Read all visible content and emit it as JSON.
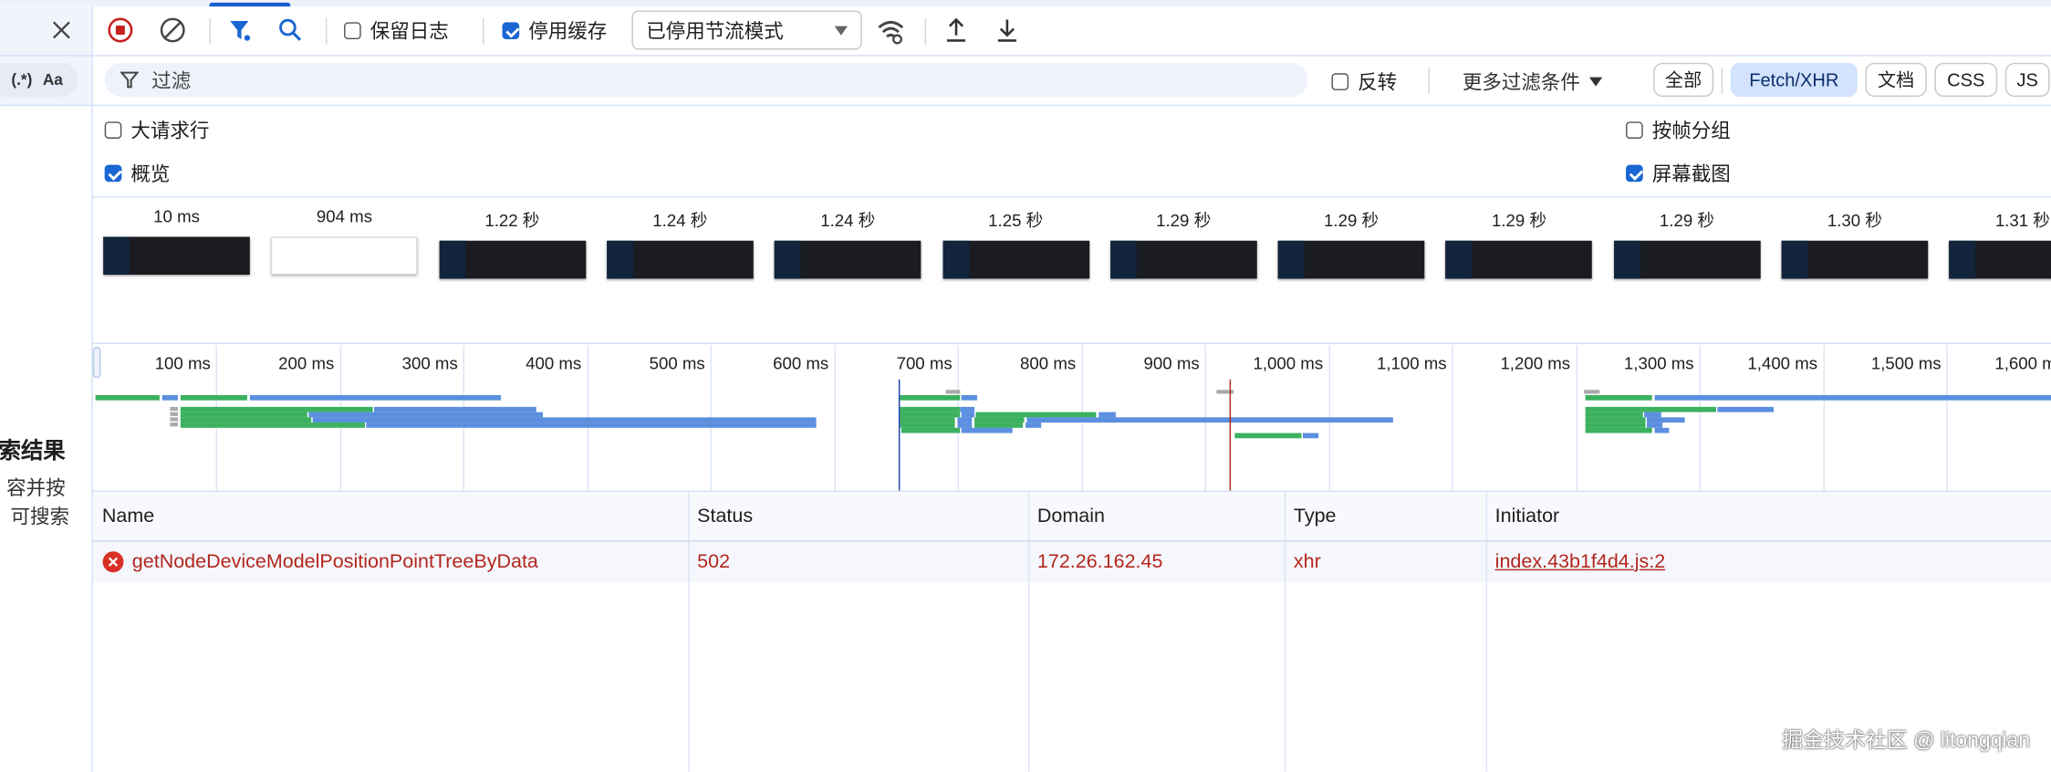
{
  "left_panel": {
    "close_icon": "close-icon",
    "regex_toggle": "(.*)",
    "case_toggle": "Aa",
    "search_results_title": "索结果",
    "hint_line1": "容并按",
    "hint_line2": "可搜索"
  },
  "toolbar": {
    "record_icon": "stop-recording-icon",
    "clear_icon": "clear-icon",
    "filter_icon": "filter-icon",
    "search_icon": "search-icon",
    "preserve_log": {
      "label": "保留日志",
      "checked": false
    },
    "disable_cache": {
      "label": "停用缓存",
      "checked": true
    },
    "throttling": {
      "selected": "已停用节流模式"
    },
    "network_conditions_icon": "wifi-gear-icon",
    "import_icon": "upload-icon",
    "export_icon": "download-icon"
  },
  "filter_bar": {
    "placeholder": "过滤",
    "invert": {
      "label": "反转",
      "checked": false
    },
    "more_filters": "更多过滤条件",
    "types": [
      {
        "label": "全部",
        "selected": false
      },
      {
        "label": "Fetch/XHR",
        "selected": true
      },
      {
        "label": "文档",
        "selected": false
      },
      {
        "label": "CSS",
        "selected": false
      },
      {
        "label": "JS",
        "selected": false
      }
    ]
  },
  "options": {
    "big_request_rows": {
      "label": "大请求行",
      "checked": false
    },
    "overview": {
      "label": "概览",
      "checked": true
    },
    "group_by_frame": {
      "label": "按帧分组",
      "checked": false
    },
    "screenshots": {
      "label": "屏幕截图",
      "checked": true
    }
  },
  "filmstrip": [
    {
      "time": "10 ms",
      "blank": false
    },
    {
      "time": "904 ms",
      "blank": true
    },
    {
      "time": "1.22 秒",
      "blank": false
    },
    {
      "time": "1.24 秒",
      "blank": false
    },
    {
      "time": "1.24 秒",
      "blank": false
    },
    {
      "time": "1.25 秒",
      "blank": false
    },
    {
      "time": "1.29 秒",
      "blank": false
    },
    {
      "time": "1.29 秒",
      "blank": false
    },
    {
      "time": "1.29 秒",
      "blank": false
    },
    {
      "time": "1.29 秒",
      "blank": false
    },
    {
      "time": "1.30 秒",
      "blank": false
    },
    {
      "time": "1.31 秒",
      "blank": false
    }
  ],
  "overview_timeline": {
    "ticks": [
      "100 ms",
      "200 ms",
      "300 ms",
      "400 ms",
      "500 ms",
      "600 ms",
      "700 ms",
      "800 ms",
      "900 ms",
      "1,000 ms",
      "1,100 ms",
      "1,200 ms",
      "1,300 ms",
      "1,400 ms",
      "1,500 ms",
      "1,600 ms"
    ],
    "dom_content_loaded_ms": 652,
    "load_ms": 920,
    "colors": {
      "waiting": "#3cb15f",
      "download": "#5b8fdf",
      "queued": "#aaaaaa",
      "dcl": "#1a3fb0",
      "load": "#b3261e"
    },
    "bars": [
      {
        "lane": 1,
        "segments": [
          [
            3,
            54,
            "waiting"
          ],
          [
            57,
            69,
            "download"
          ],
          [
            71,
            125,
            "waiting"
          ],
          [
            128,
            331,
            "download"
          ]
        ]
      },
      {
        "lane": 2,
        "segments": [
          [
            63,
            69,
            "queued"
          ],
          [
            71,
            227,
            "waiting"
          ],
          [
            228,
            359,
            "download"
          ]
        ]
      },
      {
        "lane": 3,
        "segments": [
          [
            63,
            69,
            "queued"
          ],
          [
            71,
            174,
            "waiting"
          ],
          [
            175,
            365,
            "download"
          ]
        ]
      },
      {
        "lane": 4,
        "segments": [
          [
            63,
            69,
            "queued"
          ],
          [
            71,
            177,
            "waiting"
          ],
          [
            178,
            586,
            "download"
          ]
        ]
      },
      {
        "lane": 5,
        "segments": [
          [
            63,
            69,
            "queued"
          ],
          [
            71,
            221,
            "waiting"
          ],
          [
            222,
            586,
            "download"
          ]
        ]
      },
      {
        "lane": 0,
        "segments": [
          [
            690,
            702,
            "queued"
          ]
        ]
      },
      {
        "lane": 1,
        "segments": [
          [
            653,
            702,
            "waiting"
          ],
          [
            703,
            716,
            "download"
          ]
        ]
      },
      {
        "lane": 2,
        "segments": [
          [
            653,
            702,
            "waiting"
          ],
          [
            702,
            714,
            "download"
          ]
        ]
      },
      {
        "lane": 3,
        "segments": [
          [
            653,
            702,
            "waiting"
          ],
          [
            703,
            714,
            "download"
          ],
          [
            715,
            812,
            "waiting"
          ],
          [
            814,
            828,
            "download"
          ]
        ]
      },
      {
        "lane": 4,
        "segments": [
          [
            653,
            698,
            "waiting"
          ],
          [
            700,
            712,
            "download"
          ],
          [
            714,
            754,
            "waiting"
          ],
          [
            756,
            1052,
            "download"
          ]
        ]
      },
      {
        "lane": 5,
        "segments": [
          [
            653,
            698,
            "waiting"
          ],
          [
            700,
            712,
            "download"
          ],
          [
            714,
            753,
            "waiting"
          ],
          [
            755,
            768,
            "download"
          ]
        ]
      },
      {
        "lane": 6,
        "segments": [
          [
            654,
            702,
            "waiting"
          ],
          [
            703,
            744,
            "download"
          ]
        ]
      },
      {
        "lane": 0,
        "segments": [
          [
            910,
            923,
            "queued"
          ]
        ]
      },
      {
        "lane": 7,
        "segments": [
          [
            924,
            978,
            "waiting"
          ],
          [
            979,
            992,
            "download"
          ]
        ]
      },
      {
        "lane": 0,
        "segments": [
          [
            1207,
            1220,
            "queued"
          ]
        ]
      },
      {
        "lane": 1,
        "segments": [
          [
            1208,
            1262,
            "waiting"
          ],
          [
            1264,
            1700,
            "download"
          ]
        ]
      },
      {
        "lane": 2,
        "segments": [
          [
            1208,
            1314,
            "waiting"
          ],
          [
            1315,
            1360,
            "download"
          ]
        ]
      },
      {
        "lane": 3,
        "segments": [
          [
            1208,
            1255,
            "waiting"
          ],
          [
            1256,
            1269,
            "download"
          ]
        ]
      },
      {
        "lane": 4,
        "segments": [
          [
            1208,
            1257,
            "waiting"
          ],
          [
            1258,
            1288,
            "download"
          ]
        ]
      },
      {
        "lane": 5,
        "segments": [
          [
            1208,
            1257,
            "waiting"
          ],
          [
            1258,
            1270,
            "download"
          ]
        ]
      },
      {
        "lane": 6,
        "segments": [
          [
            1208,
            1262,
            "waiting"
          ],
          [
            1264,
            1276,
            "download"
          ]
        ]
      }
    ]
  },
  "table": {
    "columns": [
      "Name",
      "Status",
      "Domain",
      "Type",
      "Initiator"
    ],
    "rows": [
      {
        "error": true,
        "error_icon": "error-icon",
        "name": "getNodeDeviceModelPositionPointTreeByData",
        "status": "502",
        "domain": "172.26.162.45",
        "type": "xhr",
        "initiator": "index.43b1f4d4.js:2"
      }
    ]
  },
  "watermark": "掘金技术社区 @ litongqian",
  "colors": {
    "accent": "#1a66d2",
    "error": "#b3261e",
    "selected_chip": "#d3e3fd"
  }
}
